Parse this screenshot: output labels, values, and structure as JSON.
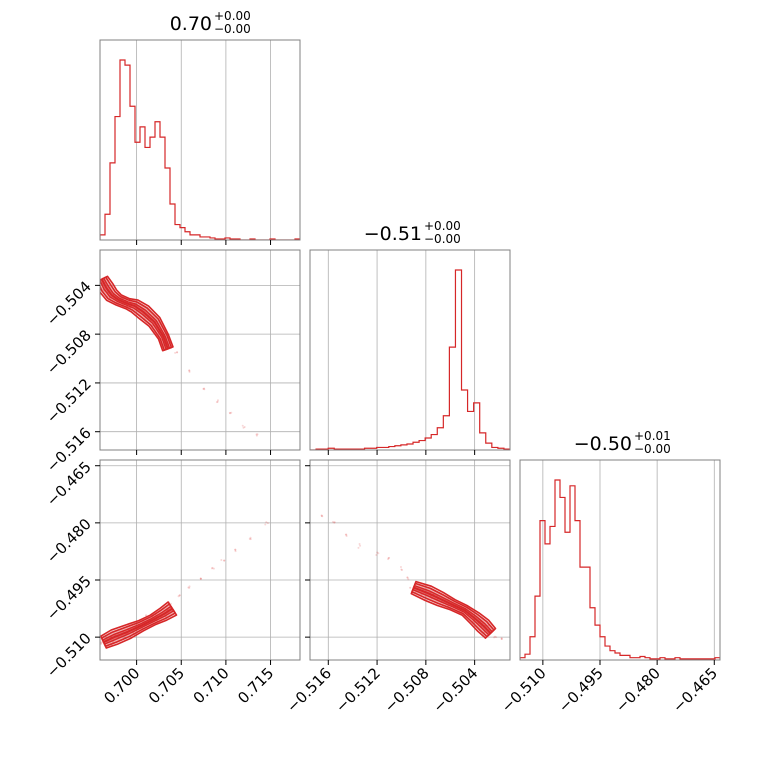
{
  "chart_data": {
    "type": "corner",
    "color": "#d62728",
    "grid": true,
    "titles": [
      {
        "main": "0.70",
        "sup": "+0.00",
        "sub": "−0.00"
      },
      {
        "main": "−0.51",
        "sup": "+0.00",
        "sub": "−0.00"
      },
      {
        "main": "−0.50",
        "sup": "+0.01",
        "sub": "−0.00"
      }
    ],
    "params": [
      {
        "range": [
          0.6959,
          0.7183
        ],
        "ticks": [
          0.7,
          0.705,
          0.71,
          0.715
        ],
        "tick_labels": [
          "0.700",
          "0.705",
          "0.710",
          "0.715"
        ]
      },
      {
        "range": [
          -0.5175,
          -0.5011
        ],
        "ticks": [
          -0.516,
          -0.512,
          -0.508,
          -0.504
        ],
        "tick_labels": [
          "−0.516",
          "−0.512",
          "−0.508",
          "−0.504"
        ]
      },
      {
        "range": [
          -0.516,
          -0.4635
        ],
        "ticks": [
          -0.51,
          -0.495,
          -0.48,
          -0.465
        ],
        "tick_labels": [
          "−0.510",
          "−0.495",
          "−0.480",
          "−0.465"
        ]
      }
    ],
    "histograms": [
      {
        "param": 0,
        "counts": [
          5,
          25,
          75,
          120,
          175,
          170,
          130,
          95,
          110,
          90,
          100,
          115,
          100,
          70,
          35,
          15,
          12,
          8,
          5,
          5,
          3,
          3,
          2,
          1,
          1,
          2,
          1,
          1,
          0,
          0,
          1,
          0,
          0,
          0,
          1,
          0,
          0,
          0,
          0,
          1
        ]
      },
      {
        "param": 1,
        "counts": [
          0,
          1,
          1,
          2,
          1,
          1,
          1,
          1,
          1,
          2,
          2,
          3,
          3,
          4,
          5,
          6,
          7,
          9,
          11,
          14,
          18,
          26,
          40,
          120,
          210,
          70,
          45,
          55,
          20,
          8,
          3,
          2,
          1
        ]
      },
      {
        "param": 2,
        "counts": [
          2,
          5,
          20,
          55,
          120,
          100,
          115,
          155,
          140,
          110,
          150,
          120,
          80,
          80,
          45,
          30,
          20,
          12,
          8,
          6,
          4,
          4,
          2,
          2,
          3,
          2,
          1,
          1,
          2,
          1,
          1,
          2,
          1,
          1,
          1,
          1,
          1,
          1,
          1,
          2
        ]
      }
    ],
    "scatter_2d": [
      {
        "x_param": 0,
        "y_param": 1,
        "ridge": [
          [
            0.6961,
            -0.5035
          ],
          [
            0.6966,
            -0.5042
          ],
          [
            0.6972,
            -0.5048
          ],
          [
            0.698,
            -0.5052
          ],
          [
            0.699,
            -0.5055
          ],
          [
            0.6998,
            -0.5057
          ],
          [
            0.7008,
            -0.5062
          ],
          [
            0.702,
            -0.507
          ],
          [
            0.703,
            -0.5082
          ],
          [
            0.7035,
            -0.5092
          ]
        ],
        "contour_spread": 0.0009,
        "tail": [
          [
            0.703,
            -0.508
          ],
          [
            0.7045,
            -0.5095
          ],
          [
            0.706,
            -0.511
          ],
          [
            0.7075,
            -0.5125
          ],
          [
            0.709,
            -0.5135
          ],
          [
            0.7105,
            -0.5145
          ],
          [
            0.712,
            -0.5155
          ],
          [
            0.7135,
            -0.5162
          ]
        ]
      },
      {
        "x_param": 0,
        "y_param": 2,
        "ridge": [
          [
            0.6963,
            -0.5113
          ],
          [
            0.6975,
            -0.51
          ],
          [
            0.699,
            -0.5086
          ],
          [
            0.7005,
            -0.507
          ],
          [
            0.7018,
            -0.5055
          ],
          [
            0.703,
            -0.504
          ],
          [
            0.704,
            -0.5025
          ]
        ],
        "contour_spread": 0.0012,
        "tail": [
          [
            0.7038,
            -0.501
          ],
          [
            0.7048,
            -0.499
          ],
          [
            0.7058,
            -0.497
          ],
          [
            0.7072,
            -0.4945
          ],
          [
            0.7085,
            -0.492
          ],
          [
            0.7098,
            -0.49
          ],
          [
            0.711,
            -0.487
          ],
          [
            0.7128,
            -0.484
          ],
          [
            0.7145,
            -0.48
          ]
        ]
      },
      {
        "x_param": 1,
        "y_param": 2,
        "ridge": [
          [
            -0.509,
            -0.497
          ],
          [
            -0.5078,
            -0.4985
          ],
          [
            -0.5068,
            -0.5
          ],
          [
            -0.5058,
            -0.5015
          ],
          [
            -0.5048,
            -0.503
          ],
          [
            -0.504,
            -0.505
          ],
          [
            -0.5033,
            -0.507
          ],
          [
            -0.5027,
            -0.509
          ]
        ],
        "contour_spread": 0.0011,
        "tail": [
          [
            -0.5165,
            -0.478
          ],
          [
            -0.5155,
            -0.48
          ],
          [
            -0.5145,
            -0.483
          ],
          [
            -0.5135,
            -0.486
          ],
          [
            -0.512,
            -0.488
          ],
          [
            -0.511,
            -0.4895
          ],
          [
            -0.51,
            -0.492
          ],
          [
            -0.5095,
            -0.4945
          ],
          [
            -0.5023,
            -0.51
          ],
          [
            -0.5018,
            -0.5105
          ]
        ]
      }
    ]
  }
}
